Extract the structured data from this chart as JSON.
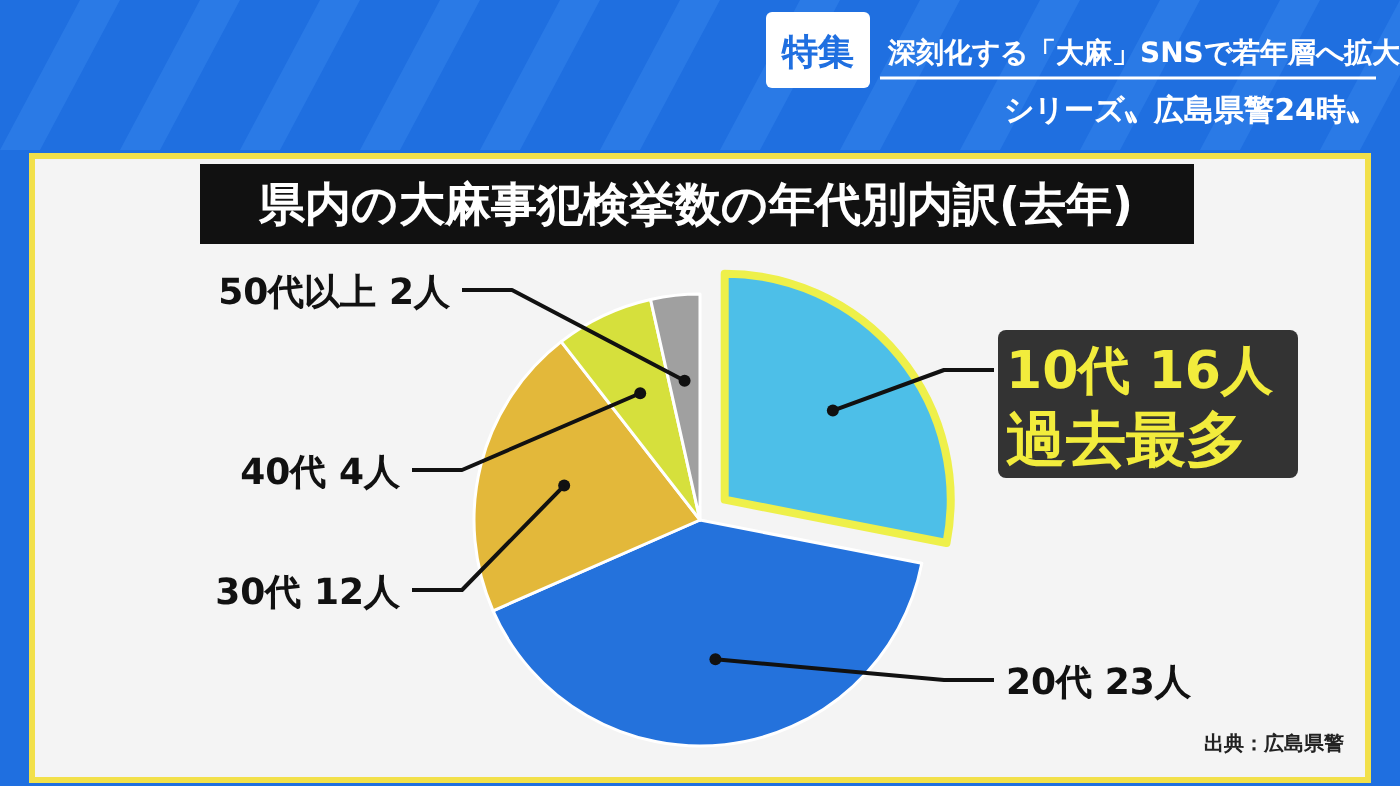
{
  "chart_data": {
    "type": "pie",
    "title": "県内の大麻事犯検挙数の年代別内訳(去年)",
    "categories": [
      "10代",
      "20代",
      "30代",
      "40代",
      "50代以上"
    ],
    "values": [
      16,
      23,
      12,
      4,
      2
    ],
    "value_labels": [
      "16人",
      "23人",
      "12人",
      "4人",
      "2人"
    ],
    "colors": [
      "#4dbfe8",
      "#2472dc",
      "#e3b83a",
      "#d6e03c",
      "#a0a0a0"
    ],
    "annotations": [
      "特集",
      "深刻化する「大麻」SNSで若年層へ拡大",
      "シリーズ〟広島県警24時〟",
      "過去最多",
      "出典：広島県警"
    ]
  }
}
